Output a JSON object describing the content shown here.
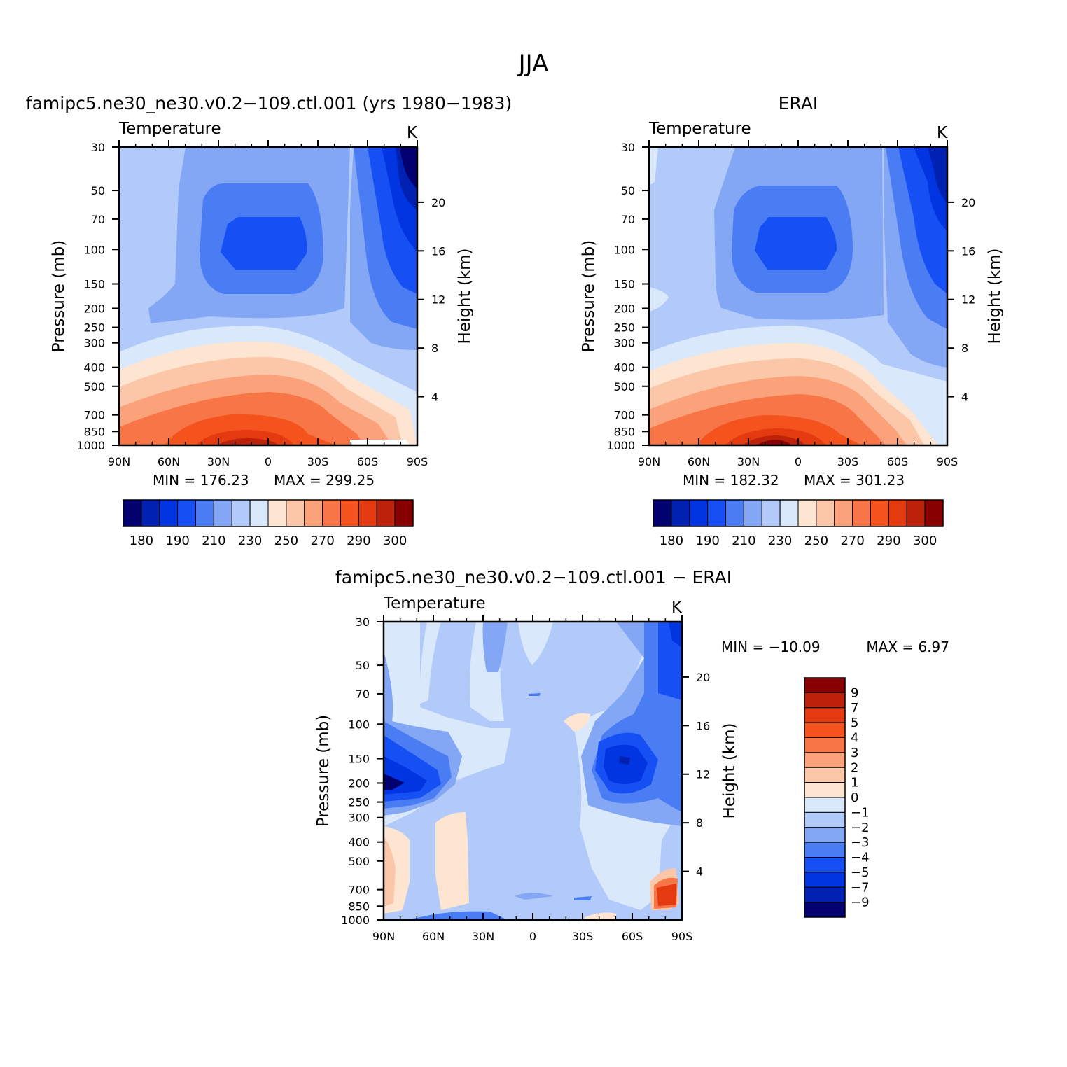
{
  "figure_title": "JJA",
  "chart_data": [
    {
      "id": "model",
      "type": "contour",
      "title": "famipc5.ne30_ne30.v0.2−109.ctl.001 (yrs 1980−1983)",
      "variable": "Temperature",
      "units": "K",
      "ylabel": "Pressure (mb)",
      "ylabel_right": "Height (km)",
      "x_ticks": [
        "90N",
        "60N",
        "30N",
        "0",
        "30S",
        "60S",
        "90S"
      ],
      "x_range": [
        90,
        -90
      ],
      "y_ticks": [
        30,
        50,
        70,
        100,
        150,
        200,
        250,
        300,
        400,
        500,
        700,
        850,
        1000
      ],
      "y_range": [
        30,
        1000
      ],
      "y_scale": "log",
      "height_ticks": [
        4,
        8,
        12,
        16,
        20
      ],
      "min_label": "MIN = 176.23",
      "max_label": "MAX = 299.25",
      "min": 176.23,
      "max": 299.25,
      "colorbar_orientation": "horizontal",
      "colorbar_labels": [
        "180",
        "190",
        "210",
        "230",
        "250",
        "270",
        "290",
        "300"
      ],
      "colors": [
        "#03006f",
        "#0021b1",
        "#0035e1",
        "#1650f5",
        "#4a7cf4",
        "#83a6f5",
        "#b2cafa",
        "#d9e9fb",
        "#fde5d2",
        "#fcc7a9",
        "#fba27b",
        "#f77547",
        "#f4531e",
        "#e33a10",
        "#bc220a",
        "#880000"
      ]
    },
    {
      "id": "obs",
      "type": "contour",
      "title": "ERAI",
      "variable": "Temperature",
      "units": "K",
      "ylabel": "Pressure (mb)",
      "ylabel_right": "Height (km)",
      "x_ticks": [
        "90N",
        "60N",
        "30N",
        "0",
        "30S",
        "60S",
        "90S"
      ],
      "x_range": [
        90,
        -90
      ],
      "y_ticks": [
        30,
        50,
        70,
        100,
        150,
        200,
        250,
        300,
        400,
        500,
        700,
        850,
        1000
      ],
      "y_range": [
        30,
        1000
      ],
      "y_scale": "log",
      "height_ticks": [
        4,
        8,
        12,
        16,
        20
      ],
      "min_label": "MIN = 182.32",
      "max_label": "MAX = 301.23",
      "min": 182.32,
      "max": 301.23,
      "colorbar_orientation": "horizontal",
      "colorbar_labels": [
        "180",
        "190",
        "210",
        "230",
        "250",
        "270",
        "290",
        "300"
      ],
      "colors": [
        "#03006f",
        "#0021b1",
        "#0035e1",
        "#1650f5",
        "#4a7cf4",
        "#83a6f5",
        "#b2cafa",
        "#d9e9fb",
        "#fde5d2",
        "#fcc7a9",
        "#fba27b",
        "#f77547",
        "#f4531e",
        "#e33a10",
        "#bc220a",
        "#880000"
      ]
    },
    {
      "id": "diff",
      "type": "contour",
      "title": "famipc5.ne30_ne30.v0.2−109.ctl.001 − ERAI",
      "variable": "Temperature",
      "units": "K",
      "ylabel": "Pressure (mb)",
      "ylabel_right": "Height (km)",
      "x_ticks": [
        "90N",
        "60N",
        "30N",
        "0",
        "30S",
        "60S",
        "90S"
      ],
      "x_range": [
        90,
        -90
      ],
      "y_ticks": [
        30,
        50,
        70,
        100,
        150,
        200,
        250,
        300,
        400,
        500,
        700,
        850,
        1000
      ],
      "y_range": [
        30,
        1000
      ],
      "y_scale": "log",
      "height_ticks": [
        4,
        8,
        12,
        16,
        20
      ],
      "min_label": "MIN = −10.09",
      "max_label": "MAX = 6.97",
      "min": -10.09,
      "max": 6.97,
      "colorbar_orientation": "vertical",
      "colorbar_labels": [
        "9",
        "7",
        "5",
        "4",
        "3",
        "2",
        "1",
        "0",
        "−1",
        "−2",
        "−3",
        "−4",
        "−5",
        "−7",
        "−9"
      ],
      "colors": [
        "#880000",
        "#bc220a",
        "#e33a10",
        "#f4531e",
        "#f77547",
        "#fba27b",
        "#fcc7a9",
        "#fde5d2",
        "#d9e9fb",
        "#b2cafa",
        "#83a6f5",
        "#4a7cf4",
        "#1650f5",
        "#0035e1",
        "#0021b1",
        "#03006f"
      ]
    }
  ]
}
